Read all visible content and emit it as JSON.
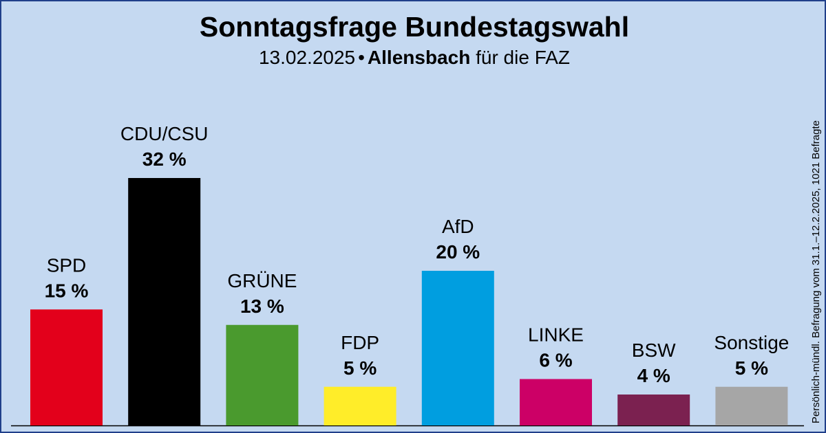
{
  "header": {
    "title": "Sonntagsfrage Bundestagswahl",
    "date": "13.02.2025",
    "separator": "•",
    "institute": "Allensbach",
    "client": "für die FAZ"
  },
  "note": "Persönlich-mündl. Befragung vom 31.1.–12.2.2025, 1021 Befragte",
  "chart_data": {
    "type": "bar",
    "categories": [
      "SPD",
      "CDU/CSU",
      "GRÜNE",
      "FDP",
      "AfD",
      "LINKE",
      "BSW",
      "Sonstige"
    ],
    "values": [
      15,
      32,
      13,
      5,
      20,
      6,
      4,
      5
    ],
    "value_labels": [
      "15 %",
      "32 %",
      "13 %",
      "5 %",
      "20 %",
      "6 %",
      "4 %",
      "5 %"
    ],
    "colors": [
      "#e3001b",
      "#000000",
      "#4a9a2e",
      "#ffed29",
      "#009ee0",
      "#cc0066",
      "#7b2150",
      "#a6a6a6"
    ],
    "title": "Sonntagsfrage Bundestagswahl",
    "ylim": [
      0,
      32
    ],
    "grid": false,
    "legend": "none"
  }
}
